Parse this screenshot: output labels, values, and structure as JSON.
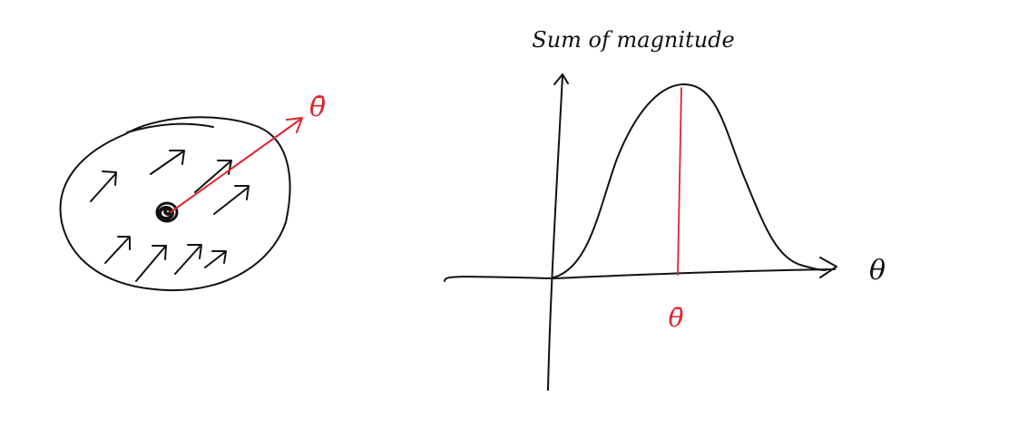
{
  "colors": {
    "ink": "#111111",
    "accent": "#e0242b"
  },
  "left_diagram": {
    "arrow_label": "θ̄"
  },
  "right_diagram": {
    "y_axis_label": "Sum of magnitude",
    "x_axis_label": "θ",
    "peak_label": "θ̄"
  }
}
